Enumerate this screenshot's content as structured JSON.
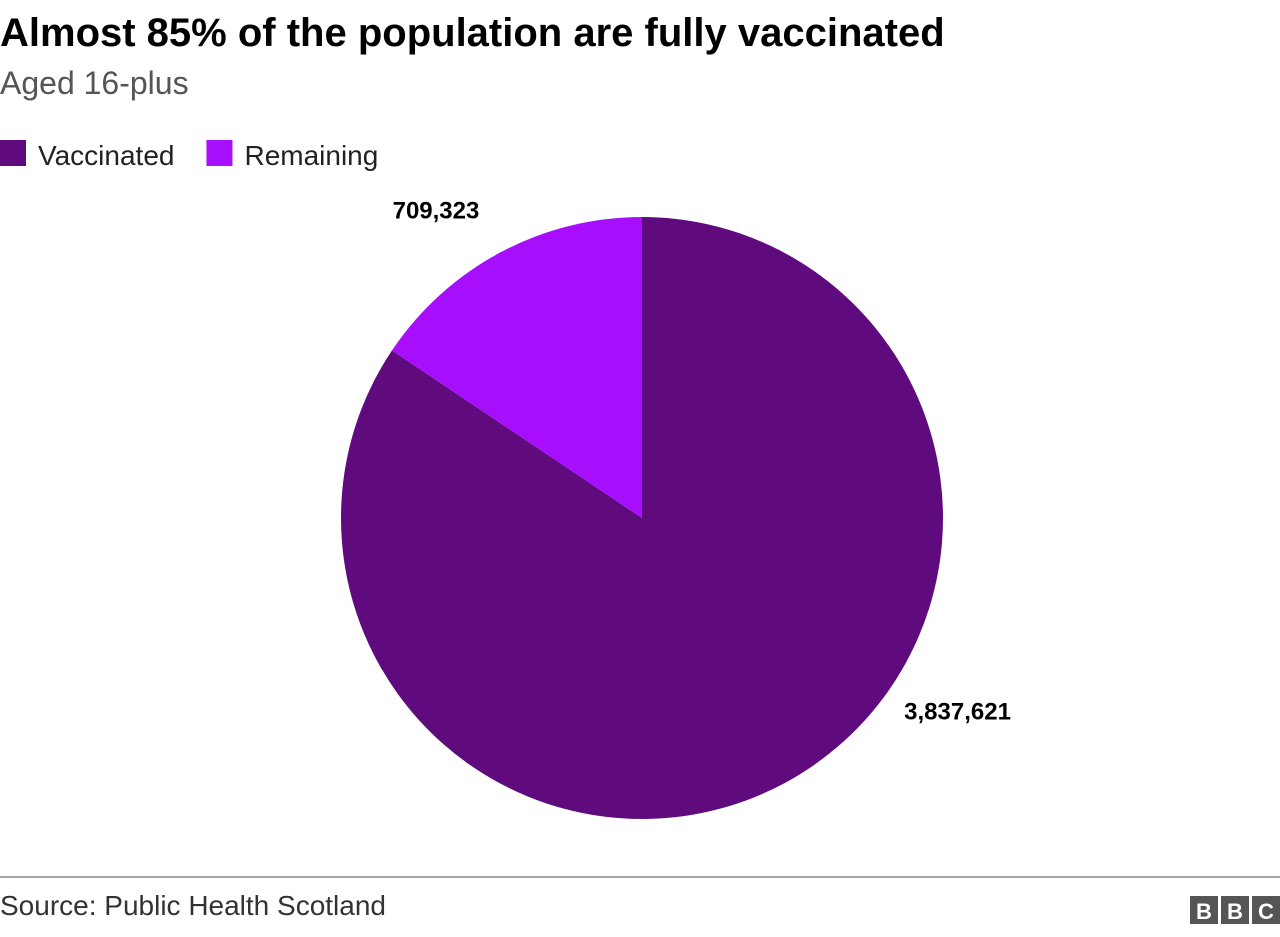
{
  "chart_data": {
    "type": "pie",
    "title": "Almost 85% of the population are fully vaccinated",
    "subtitle": "Aged 16-plus",
    "categories": [
      "Vaccinated",
      "Remaining"
    ],
    "values": [
      3837621,
      709323
    ],
    "value_labels": [
      "3,837,621",
      "709,323"
    ],
    "colors": [
      "#5f0b7e",
      "#a70efe"
    ],
    "source": "Source: Public Health Scotland",
    "logo": [
      "B",
      "B",
      "C"
    ]
  }
}
